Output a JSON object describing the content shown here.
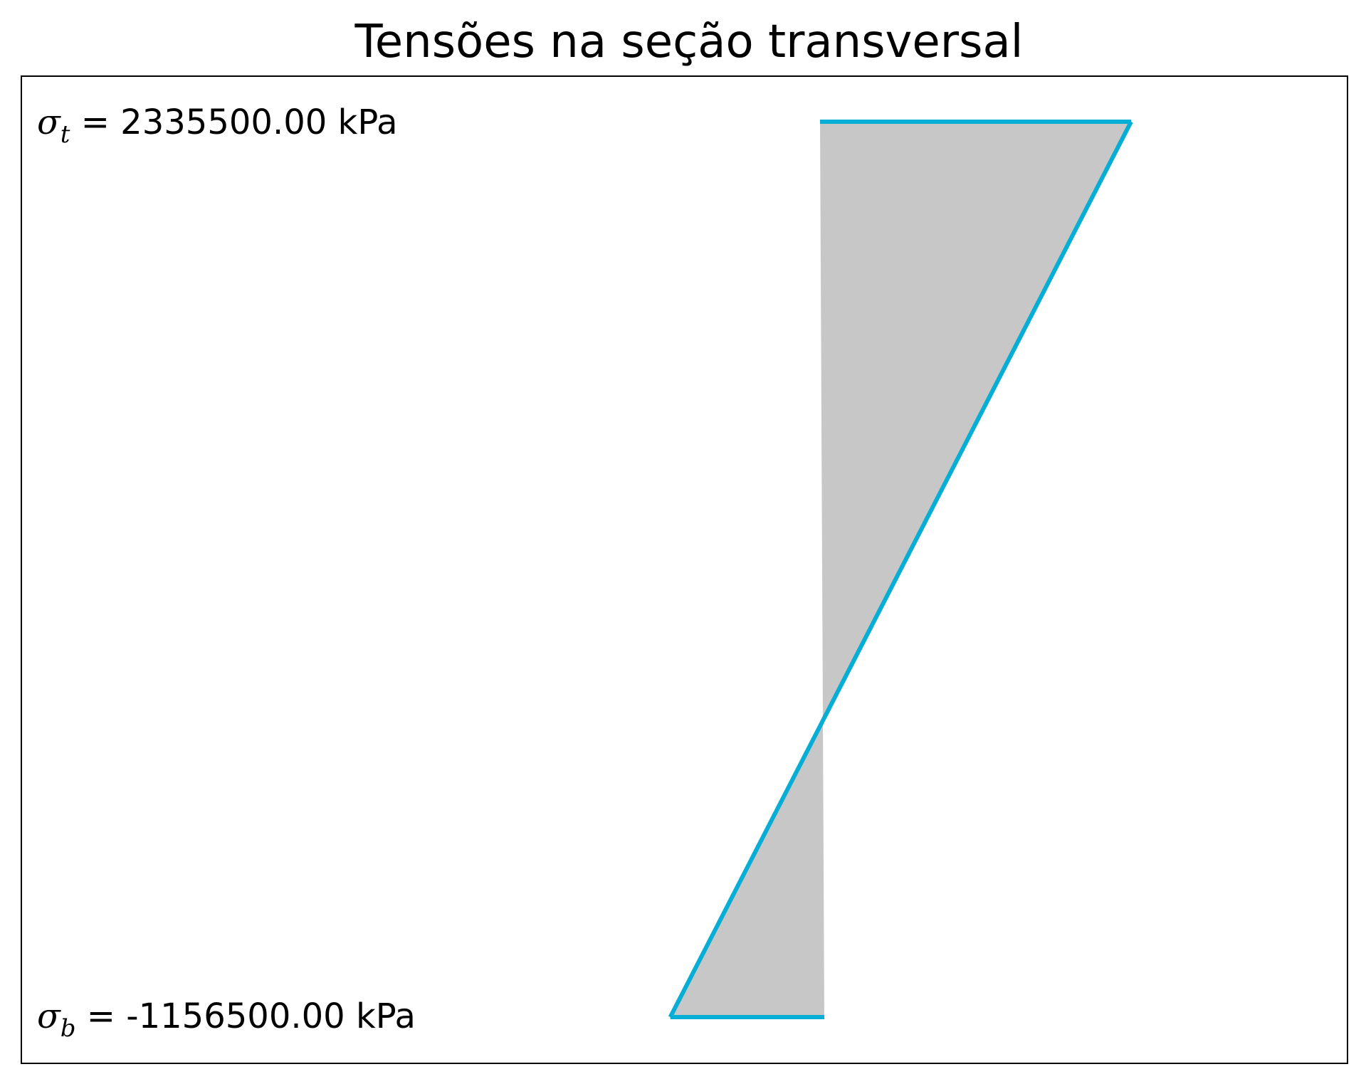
{
  "chart_data": {
    "type": "area",
    "title": "Tensões na seção transversal",
    "xlabel": "",
    "ylabel": "",
    "grid": false,
    "axes_ticks": false,
    "x": [
      2335500.0,
      -1156500.0
    ],
    "y": [
      "top",
      "bottom"
    ],
    "stress_top_kpa": 2335500.0,
    "stress_bottom_kpa": -1156500.0,
    "annotations": [
      {
        "symbol": "σ",
        "subscript": "t",
        "equals": " = ",
        "value": "2335500.00 kPa",
        "position": "top-left"
      },
      {
        "symbol": "σ",
        "subscript": "b",
        "equals": " = ",
        "value": "-1156500.00 kPa",
        "position": "bottom-left"
      }
    ],
    "colors": {
      "line": "#06aed5",
      "fill": "#c7c7c7",
      "frame": "#000000"
    }
  }
}
